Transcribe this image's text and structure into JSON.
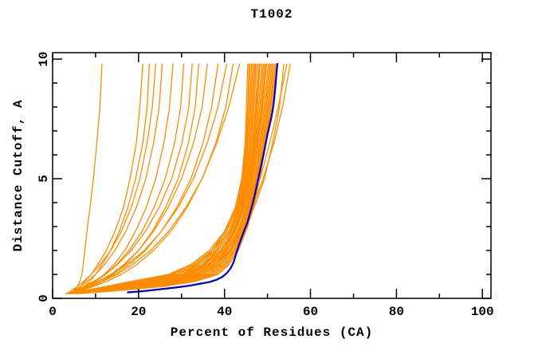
{
  "title": "T1002",
  "chart_data": {
    "type": "line",
    "title": "T1002",
    "xlabel": "Percent of Residues (CA)",
    "ylabel": "Distance Cutoff, A",
    "xlim": [
      0,
      102
    ],
    "ylim": [
      0,
      10.27
    ],
    "x_major_ticks": [
      0,
      20,
      40,
      60,
      80,
      100
    ],
    "x_minor_ticks": [
      10,
      30,
      50,
      70,
      90
    ],
    "y_major_ticks": [
      0,
      5,
      10
    ],
    "y_minor_ticks": [
      1,
      2,
      3,
      4,
      6,
      7,
      8,
      9
    ],
    "grid": false,
    "legend": "none",
    "colors": {
      "model": "#ff8c00",
      "best": "#0000cd",
      "frame": "#000000",
      "text": "#000000",
      "background": "#ffffff"
    },
    "model_curves_y_anchors": [
      0.2,
      0.35,
      0.5,
      0.7,
      1.0,
      1.4,
      2.0,
      2.8,
      3.8,
      5.0,
      6.5,
      8.0,
      9.8
    ],
    "model_curves_x": [
      [
        3,
        8,
        12.5,
        18,
        27,
        32,
        36.5,
        40,
        42.5,
        44,
        44.8,
        45.1,
        45.4
      ],
      [
        3,
        8.5,
        13,
        19,
        27.5,
        32.5,
        37,
        40,
        42.8,
        44.2,
        45,
        45.4,
        45.7
      ],
      [
        3.5,
        9,
        14,
        19.5,
        28,
        33.5,
        37,
        40.5,
        43,
        44.4,
        45.2,
        45.6,
        46
      ],
      [
        3.5,
        9,
        14.5,
        20,
        29,
        33,
        37.5,
        40.3,
        42.6,
        44.5,
        45.4,
        45.9,
        46.3
      ],
      [
        3.5,
        10,
        15,
        21,
        29,
        34,
        37.5,
        41,
        43.2,
        44.7,
        45.6,
        46.1,
        46.6
      ],
      [
        4,
        10,
        15.5,
        21.5,
        30,
        34,
        38,
        41,
        43.4,
        44.9,
        45.9,
        46.4,
        46.9
      ],
      [
        4,
        10.5,
        16,
        22,
        30,
        35,
        38.5,
        41.3,
        43.6,
        45.1,
        46.1,
        46.6,
        47.2
      ],
      [
        4,
        11,
        16.5,
        23,
        30.5,
        34.7,
        38.3,
        41.5,
        43.8,
        45.3,
        46.2,
        46.9,
        47.4
      ],
      [
        4,
        11,
        17,
        23.5,
        31,
        35.2,
        39,
        41.8,
        44,
        45.5,
        46.5,
        47.2,
        47.8
      ],
      [
        4.5,
        11.5,
        18,
        24,
        31.5,
        35.5,
        39.1,
        42,
        44.2,
        45.6,
        46.7,
        47.4,
        48.1
      ],
      [
        4.5,
        12,
        18.5,
        24.5,
        32,
        36,
        39.4,
        42.2,
        44.4,
        45.8,
        46.9,
        47.6,
        48.3
      ],
      [
        4.5,
        12.5,
        19,
        25.5,
        32.5,
        36.3,
        39.7,
        42.4,
        44.6,
        46,
        47.1,
        47.9,
        48.7
      ],
      [
        5,
        12.5,
        19.5,
        26,
        33,
        37,
        40,
        42.6,
        44.7,
        46.2,
        47.3,
        48.2,
        49
      ],
      [
        5,
        13,
        20,
        26.5,
        33.5,
        37.1,
        40.3,
        43,
        45,
        46.4,
        47.5,
        48.5,
        49.3
      ],
      [
        5,
        13.5,
        21,
        27,
        34,
        37.5,
        40.6,
        43.1,
        45.1,
        46.6,
        47.7,
        48.7,
        49.6
      ],
      [
        5.5,
        14,
        21.5,
        28,
        34.5,
        38,
        41,
        43.3,
        45.3,
        46.7,
        47.9,
        48.9,
        49.8
      ],
      [
        5.5,
        14.5,
        22,
        28.5,
        35,
        38.3,
        41.2,
        43.5,
        45.5,
        47,
        48.2,
        49.2,
        50.2
      ],
      [
        5.5,
        14.5,
        22.5,
        29,
        35.5,
        38.7,
        41.5,
        43.7,
        45.7,
        47.1,
        48.4,
        49.5,
        50.5
      ],
      [
        6,
        15,
        23,
        30,
        36,
        39,
        41.7,
        44,
        45.9,
        47.3,
        48.6,
        49.7,
        50.8
      ],
      [
        6,
        15.5,
        24,
        30.5,
        36.5,
        39.4,
        42.1,
        44.2,
        46.1,
        47.5,
        48.9,
        50,
        51.1
      ],
      [
        6,
        16,
        24,
        31,
        37,
        39.8,
        42.3,
        44.4,
        46.2,
        47.7,
        49.1,
        50.2,
        51.4
      ],
      [
        6,
        16,
        25,
        31.5,
        37.5,
        40.2,
        42.6,
        44.6,
        46.4,
        47.8,
        49.3,
        50.5,
        51.7
      ],
      [
        6.5,
        16.5,
        25.5,
        32.5,
        38,
        40.6,
        42.9,
        44.8,
        46.6,
        48,
        49.5,
        50.7,
        52
      ],
      [
        6.5,
        17,
        26,
        33,
        38.5,
        41,
        43.2,
        45,
        46.8,
        48.2,
        49.6,
        51,
        52.2
      ],
      [
        5,
        12,
        19,
        26,
        33.5,
        37.5,
        41,
        44,
        46.5,
        49,
        51.5,
        53.5,
        55.3
      ],
      [
        4.5,
        11,
        17.5,
        24.5,
        32,
        36.5,
        40.2,
        43.3,
        45.8,
        48.3,
        50.5,
        52.5,
        54.5
      ],
      [
        5.5,
        13,
        20,
        27.5,
        34.5,
        38,
        41.5,
        44.3,
        46.9,
        49.3,
        51.2,
        52.8,
        53.8
      ],
      [
        4,
        5,
        5.8,
        6.3,
        6.8,
        7.1,
        7.5,
        8,
        8.7,
        9.5,
        10.3,
        11,
        11.5
      ],
      [
        4.5,
        5.5,
        6.5,
        7.5,
        9,
        10.5,
        12.5,
        14.5,
        16.5,
        18,
        19.5,
        20.3,
        21
      ],
      [
        5,
        6.2,
        7.4,
        8.6,
        10,
        11.5,
        13.5,
        15.5,
        17.5,
        19.3,
        21,
        22,
        22.5
      ],
      [
        3.5,
        4.5,
        5.8,
        7.2,
        9,
        11,
        13.5,
        16,
        18.3,
        20.3,
        22,
        23.2,
        24
      ],
      [
        4,
        5.2,
        6.5,
        8,
        10,
        12,
        14.5,
        17,
        19.5,
        21.7,
        23.5,
        24.8,
        25.5
      ],
      [
        5,
        6.5,
        8,
        9.8,
        12,
        14.2,
        16.8,
        19.3,
        21.8,
        24,
        25.9,
        27.2,
        28
      ],
      [
        4.5,
        6,
        7.8,
        9.8,
        12.3,
        14.8,
        17.8,
        20.8,
        23.6,
        26.2,
        28.4,
        29.8,
        30.5
      ],
      [
        4,
        5.5,
        7.3,
        9.5,
        12.3,
        15,
        18.3,
        21.6,
        24.8,
        27.7,
        30.1,
        31.7,
        32.5
      ],
      [
        5.5,
        7,
        9,
        11.3,
        14,
        16.8,
        20,
        23.2,
        26.3,
        29.2,
        31.6,
        33.2,
        34
      ],
      [
        4,
        5.8,
        8,
        10.5,
        13.5,
        16.5,
        20,
        23.5,
        26.9,
        30,
        32.8,
        34.8,
        36
      ],
      [
        4.5,
        6.3,
        8.6,
        11.3,
        14.6,
        17.8,
        21.6,
        25.3,
        28.9,
        32.2,
        35,
        37,
        38.5
      ],
      [
        3.5,
        5.3,
        7.6,
        10.3,
        13.8,
        17.2,
        21.3,
        25.3,
        29.2,
        32.8,
        36,
        38.5,
        40.5
      ],
      [
        5,
        7,
        9.5,
        12.5,
        16,
        19.5,
        23.5,
        27.5,
        31.3,
        34.8,
        38,
        40.3,
        42
      ],
      [
        4,
        6,
        8.5,
        11.5,
        15,
        18.5,
        22.8,
        27,
        31,
        34.8,
        38.2,
        41,
        43.5
      ]
    ],
    "best_model_points": [
      [
        17.5,
        0.25
      ],
      [
        21,
        0.3
      ],
      [
        25,
        0.38
      ],
      [
        28.5,
        0.45
      ],
      [
        31.5,
        0.52
      ],
      [
        34,
        0.6
      ],
      [
        36.5,
        0.68
      ],
      [
        38.2,
        0.78
      ],
      [
        39.5,
        0.9
      ],
      [
        40.5,
        1.05
      ],
      [
        41.4,
        1.25
      ],
      [
        42.1,
        1.5
      ],
      [
        42.7,
        1.85
      ],
      [
        43.3,
        2.2
      ],
      [
        43.9,
        2.5
      ],
      [
        44.6,
        2.85
      ],
      [
        45.3,
        3.15
      ],
      [
        46,
        3.6
      ],
      [
        46.6,
        4.0
      ],
      [
        47.2,
        4.45
      ],
      [
        47.8,
        4.95
      ],
      [
        48.4,
        5.45
      ],
      [
        49,
        5.95
      ],
      [
        49.5,
        6.4
      ],
      [
        50,
        6.85
      ],
      [
        50.5,
        7.25
      ],
      [
        51,
        7.65
      ],
      [
        51.4,
        8.1
      ],
      [
        51.7,
        8.6
      ],
      [
        51.9,
        9.0
      ],
      [
        52.1,
        9.4
      ],
      [
        52.3,
        9.8
      ]
    ]
  }
}
